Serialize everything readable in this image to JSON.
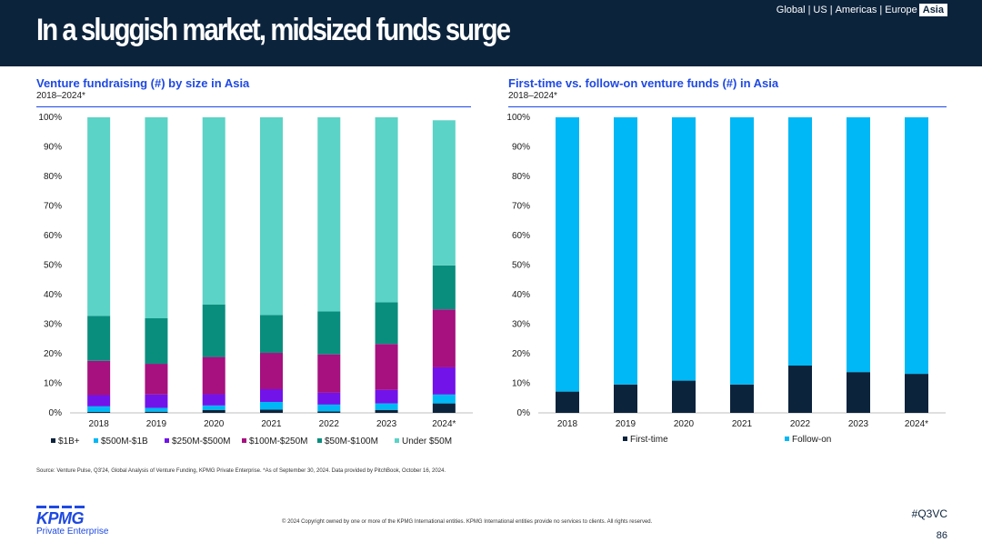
{
  "header": {
    "title": "In a sluggish market, midsized funds surge",
    "regions": [
      "Global",
      "US",
      "Americas",
      "Europe",
      "Asia"
    ],
    "active_region": "Asia"
  },
  "chart_data": [
    {
      "type": "bar",
      "stacked": true,
      "title": "Venture fundraising (#) by size in Asia",
      "subtitle": "2018–2024*",
      "categories": [
        "2018",
        "2019",
        "2020",
        "2021",
        "2022",
        "2023",
        "2024*"
      ],
      "ylim": [
        0,
        100
      ],
      "yticks": [
        "0%",
        "10%",
        "20%",
        "30%",
        "40%",
        "50%",
        "60%",
        "70%",
        "80%",
        "90%",
        "100%"
      ],
      "legend_position": "bottom",
      "series": [
        {
          "name": "$1B+",
          "color": "#0c233c",
          "values": [
            0.3,
            0.4,
            1.0,
            1.1,
            0.5,
            1.0,
            3.2
          ]
        },
        {
          "name": "$500M-$1B",
          "color": "#00b8f5",
          "values": [
            1.9,
            1.3,
            1.5,
            2.6,
            2.3,
            2.2,
            3.0
          ]
        },
        {
          "name": "$250M-$500M",
          "color": "#7213ea",
          "values": [
            3.8,
            4.5,
            3.8,
            4.3,
            4.0,
            4.6,
            9.2
          ]
        },
        {
          "name": "$100M-$250M",
          "color": "#a6107f",
          "values": [
            11.6,
            10.4,
            12.6,
            12.3,
            13.0,
            15.5,
            19.6
          ]
        },
        {
          "name": "$50M-$100M",
          "color": "#098e7e",
          "values": [
            15.2,
            15.4,
            17.8,
            12.8,
            14.5,
            14.1,
            14.9
          ]
        },
        {
          "name": "Under $50M",
          "color": "#5bd3c6",
          "values": [
            67.2,
            68.0,
            63.3,
            66.9,
            65.7,
            62.6,
            49.1
          ]
        }
      ]
    },
    {
      "type": "bar",
      "stacked": true,
      "title": "First-time vs. follow-on venture funds (#) in Asia",
      "subtitle": "2018–2024*",
      "categories": [
        "2018",
        "2019",
        "2020",
        "2021",
        "2022",
        "2023",
        "2024*"
      ],
      "ylim": [
        0,
        100
      ],
      "yticks": [
        "0%",
        "10%",
        "20%",
        "30%",
        "40%",
        "50%",
        "60%",
        "70%",
        "80%",
        "90%",
        "100%"
      ],
      "legend_position": "bottom",
      "series": [
        {
          "name": "First-time",
          "color": "#0c233c",
          "values": [
            7.2,
            9.6,
            10.9,
            9.6,
            16.0,
            13.8,
            13.2
          ]
        },
        {
          "name": "Follow-on",
          "color": "#00b8f5",
          "values": [
            92.8,
            90.4,
            89.1,
            90.4,
            84.0,
            86.2,
            86.8
          ]
        }
      ]
    }
  ],
  "footer": {
    "source": "Source: Venture Pulse, Q3'24, Global Analysis of Venture Funding, KPMG Private Enterprise. *As of September 30, 2024. Data provided by PitchBook, October 16, 2024.",
    "copyright": "© 2024 Copyright owned by one or more of the KPMG International entities. KPMG International entities provide no services to clients. All rights reserved.",
    "hashtag": "#Q3VC",
    "page_number": "86",
    "logo_text": "KPMG",
    "logo_sub": "Private Enterprise"
  }
}
